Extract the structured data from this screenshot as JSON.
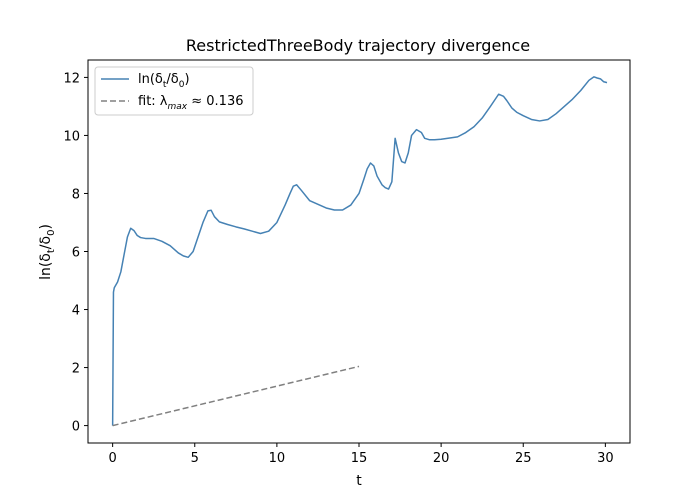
{
  "chart_data": {
    "type": "line",
    "title": "RestrictedThreeBody trajectory divergence",
    "xlabel": "t",
    "ylabel": "ln(δt/δ0)",
    "xlim": [
      -1.5,
      31.5
    ],
    "ylim": [
      -0.6,
      12.6
    ],
    "xticks": [
      0,
      5,
      10,
      15,
      20,
      25,
      30
    ],
    "yticks": [
      0,
      2,
      4,
      6,
      8,
      10,
      12
    ],
    "grid": false,
    "legend_position": "top-left",
    "series": [
      {
        "name": "ln(δt/δ0)",
        "style": "solid",
        "color": "#4682b4",
        "x": [
          0,
          0.05,
          0.1,
          0.3,
          0.5,
          0.7,
          0.9,
          1.1,
          1.3,
          1.5,
          1.7,
          2,
          2.5,
          3,
          3.5,
          4,
          4.3,
          4.6,
          4.9,
          5.2,
          5.5,
          5.8,
          6,
          6.2,
          6.5,
          7,
          7.5,
          8,
          8.5,
          9,
          9.5,
          10,
          10.5,
          10.8,
          11,
          11.2,
          11.5,
          12,
          13,
          13.5,
          14,
          14.5,
          15,
          15.3,
          15.5,
          15.7,
          15.9,
          16.1,
          16.4,
          16.6,
          16.8,
          17,
          17.2,
          17.4,
          17.6,
          17.8,
          18,
          18.2,
          18.5,
          18.8,
          19,
          19.3,
          19.6,
          20,
          21,
          21.5,
          22,
          22.5,
          23,
          23.5,
          23.8,
          24,
          24.3,
          24.6,
          25,
          25.5,
          26,
          26.5,
          27,
          27.5,
          28,
          28.5,
          29,
          29.3,
          29.5,
          29.7,
          29.9,
          30.1
        ],
        "y": [
          0,
          4.6,
          4.75,
          4.95,
          5.3,
          5.9,
          6.5,
          6.8,
          6.72,
          6.55,
          6.48,
          6.45,
          6.45,
          6.35,
          6.2,
          5.95,
          5.85,
          5.8,
          6.0,
          6.5,
          7.0,
          7.4,
          7.42,
          7.2,
          7.02,
          6.93,
          6.85,
          6.78,
          6.7,
          6.62,
          6.7,
          7.0,
          7.6,
          8.0,
          8.25,
          8.3,
          8.1,
          7.75,
          7.5,
          7.43,
          7.43,
          7.6,
          8.0,
          8.5,
          8.85,
          9.05,
          8.95,
          8.6,
          8.3,
          8.2,
          8.15,
          8.4,
          9.9,
          9.4,
          9.1,
          9.05,
          9.4,
          10.0,
          10.2,
          10.1,
          9.9,
          9.85,
          9.85,
          9.87,
          9.95,
          10.1,
          10.3,
          10.6,
          11.0,
          11.42,
          11.35,
          11.2,
          10.95,
          10.8,
          10.68,
          10.55,
          10.5,
          10.55,
          10.75,
          11.0,
          11.25,
          11.55,
          11.9,
          12.02,
          11.98,
          11.95,
          11.85,
          11.82
        ]
      },
      {
        "name": "fit: λmax ≈ 0.136",
        "style": "dashed",
        "color": "#808080",
        "x": [
          0,
          15
        ],
        "y": [
          0,
          2.04
        ]
      }
    ],
    "legend_labels": [
      {
        "base": "ln(δ",
        "sub": "t",
        "mid": "/δ",
        "sub2": "0",
        "end": ")"
      },
      {
        "base": "fit: λ",
        "sub": "max",
        "mid": " ≈ 0.136",
        "sub2": "",
        "end": ""
      }
    ]
  }
}
